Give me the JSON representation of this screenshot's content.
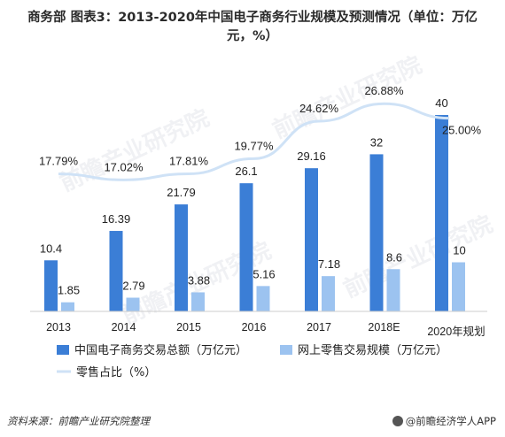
{
  "title": "商务部 图表3：2013-2020年中国电子商务行业规模及预测情况（单位：万亿元，%）",
  "source": "资料来源：前瞻产业研究院整理",
  "credit": "@前瞻经济学人APP",
  "watermark": "前瞻产业研究院",
  "colors": {
    "series1": "#3b7ed6",
    "series2": "#9cc3f0",
    "line": "#cfe2f6",
    "axis": "#cccccc"
  },
  "chart_data": {
    "type": "bar",
    "categories": [
      "2013",
      "2014",
      "2015",
      "2016",
      "2017",
      "2018E",
      "2020年规划"
    ],
    "series": [
      {
        "name": "中国电子商务交易总额（万亿元）",
        "type": "bar",
        "values": [
          10.4,
          16.39,
          21.79,
          26.1,
          29.16,
          32,
          40
        ],
        "labels": [
          "10.4",
          "16.39",
          "21.79",
          "26.1",
          "29.16",
          "32",
          "40"
        ]
      },
      {
        "name": "网上零售交易规模（万亿元）",
        "type": "bar",
        "values": [
          1.85,
          2.79,
          3.88,
          5.16,
          7.18,
          8.6,
          10
        ],
        "labels": [
          "1.85",
          "2.79",
          "3.88",
          "5.16",
          "7.18",
          "8.6",
          "10"
        ]
      },
      {
        "name": "零售占比（%）",
        "type": "line",
        "values": [
          17.79,
          17.02,
          17.81,
          19.77,
          24.62,
          26.88,
          25.0
        ],
        "labels": [
          "17.79%",
          "17.02%",
          "17.81%",
          "19.77%",
          "24.62%",
          "26.88%",
          "25.00%"
        ]
      }
    ],
    "ylim_bar": [
      0,
      40
    ],
    "ylim_line": [
      0,
      30
    ],
    "grid": false,
    "legend_position": "bottom"
  }
}
